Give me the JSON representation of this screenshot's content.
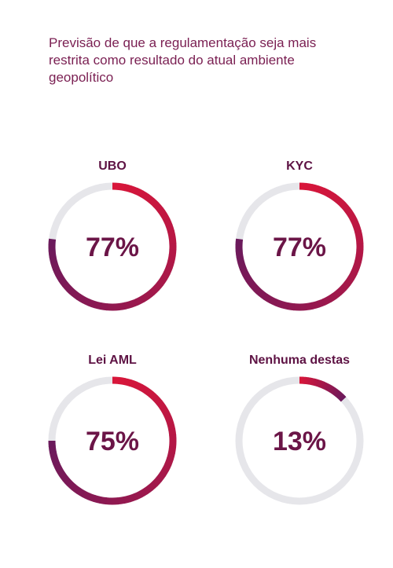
{
  "title": "Previsão de que a regulamentação seja mais restrita como resultado do atual ambiente geopolítico",
  "colors": {
    "track": "#e6e6ea",
    "arc_start": "#d8163a",
    "arc_end": "#6b1a5c",
    "value_text": "#6b1547"
  },
  "chart_data": [
    {
      "type": "donut",
      "title": "UBO",
      "value": 77,
      "value_label": "77%"
    },
    {
      "type": "donut",
      "title": "KYC",
      "value": 77,
      "value_label": "77%"
    },
    {
      "type": "donut",
      "title": "Lei AML",
      "value": 75,
      "value_label": "75%"
    },
    {
      "type": "donut",
      "title": "Nenhuma destas",
      "value": 13,
      "value_label": "13%"
    }
  ]
}
